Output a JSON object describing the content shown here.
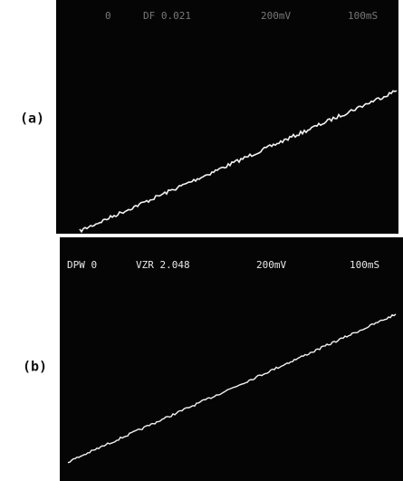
{
  "panels": [
    {
      "label": "(a)",
      "header": [
        "0",
        "DF 0.021",
        "200mV",
        "100mS"
      ]
    },
    {
      "label": "(b)",
      "header": [
        "DPW 0",
        "VZR 2.048",
        "200mV",
        "100mS"
      ]
    }
  ]
}
